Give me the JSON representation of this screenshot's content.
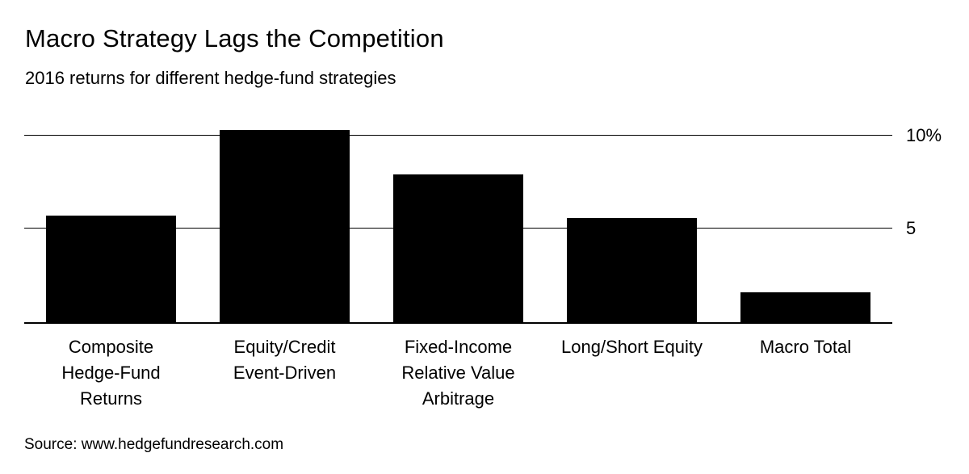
{
  "chart": {
    "title": "Macro Strategy Lags the Competition",
    "subtitle": "2016 returns for different hedge-fund strategies",
    "source": "Source: www.hedgefundresearch.com"
  },
  "chart_data": {
    "type": "bar",
    "title": "Macro Strategy Lags the Competition",
    "subtitle": "2016 returns for different hedge-fund strategies",
    "source": "Source: www.hedgefundresearch.com",
    "categories": [
      "Composite Hedge-Fund Returns",
      "Equity/Credit Event-Driven",
      "Fixed-Income Relative Value Arbitrage",
      "Long/Short Equity",
      "Macro Total"
    ],
    "category_lines": [
      [
        "Composite",
        "Hedge-Fund",
        "Returns"
      ],
      [
        "Equity/Credit",
        "Event-Driven"
      ],
      [
        "Fixed-Income",
        "Relative Value",
        "Arbitrage"
      ],
      [
        "Long/Short Equity"
      ],
      [
        "Macro Total"
      ]
    ],
    "values": [
      5.7,
      10.3,
      7.9,
      5.6,
      1.6
    ],
    "unit": "%",
    "xlabel": "",
    "ylabel": "",
    "ylim": [
      0,
      11.2
    ],
    "yticks": [
      {
        "value": 5,
        "label": "5"
      },
      {
        "value": 10,
        "label": "10%"
      }
    ],
    "bar_color": "#000000",
    "grid": true,
    "legend": false,
    "tick_label_position": "right"
  }
}
